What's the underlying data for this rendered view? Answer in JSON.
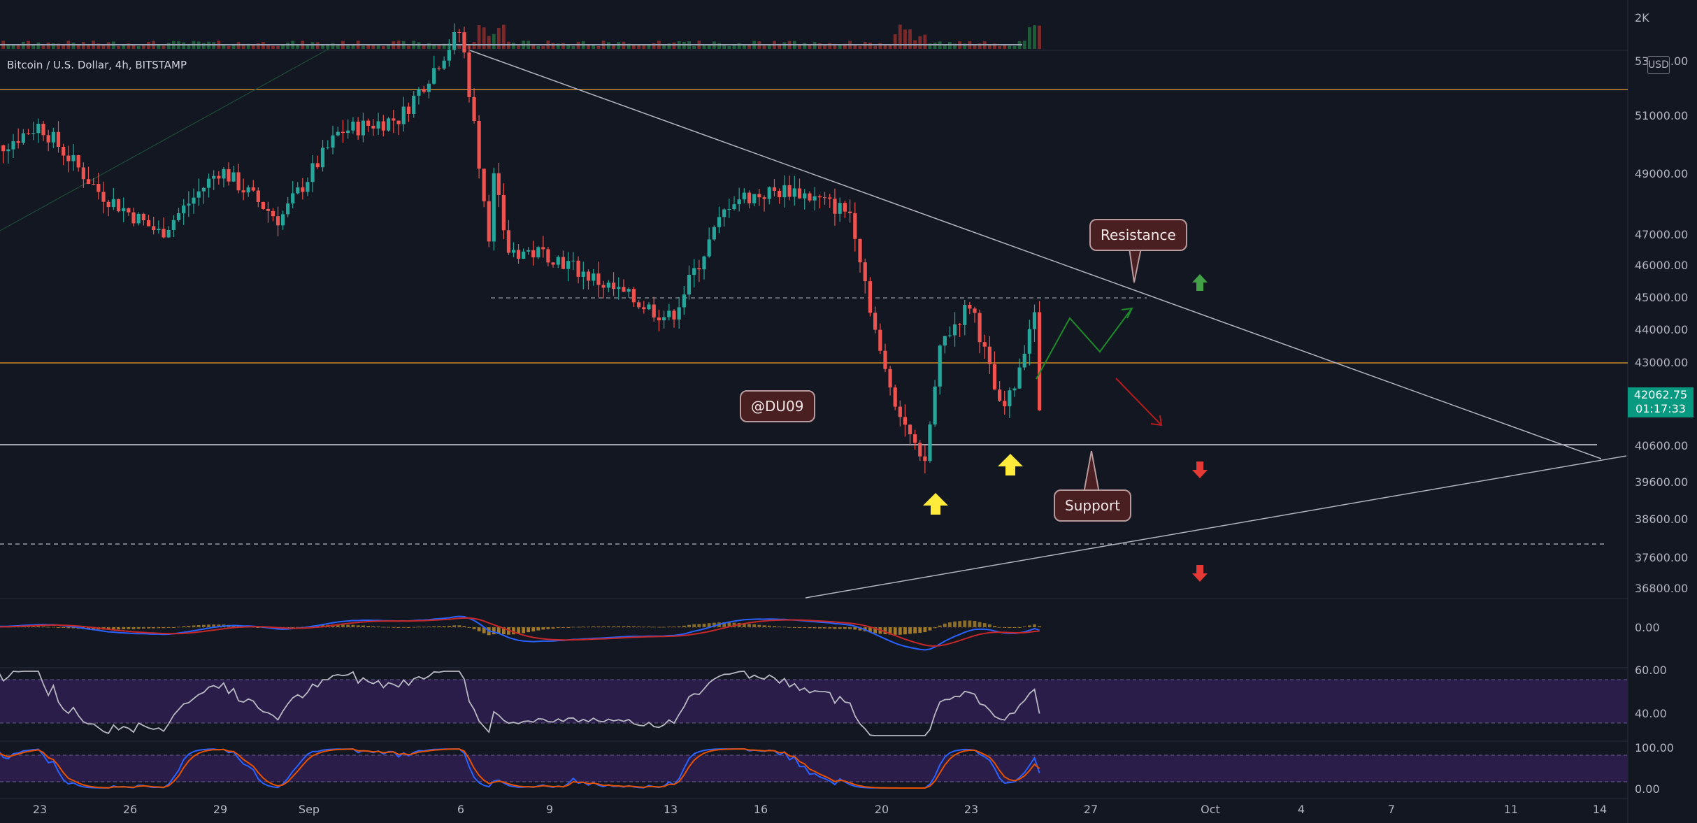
{
  "header": {
    "symbol_title": "Bitcoin / U.S. Dollar, 4h, BITSTAMP"
  },
  "price_scale": {
    "currency_badge": "USD",
    "top_label": "2K",
    "labels": [
      "53000.00",
      "51000.00",
      "49000.00",
      "47000.00",
      "46000.00",
      "45000.00",
      "44000.00",
      "43000.00",
      "40600.00",
      "39600.00",
      "38600.00",
      "37600.00",
      "36800.00"
    ],
    "current_price": "42062.75",
    "countdown": "01:17:33"
  },
  "indicator_scales": {
    "macd": [
      "0.00"
    ],
    "rsi": [
      "60.00",
      "40.00"
    ],
    "stoch": [
      "100.00",
      "0.00"
    ]
  },
  "time_axis": [
    "23",
    "26",
    "29",
    "Sep",
    "6",
    "9",
    "13",
    "16",
    "20",
    "23",
    "27",
    "Oct",
    "4",
    "7",
    "11",
    "14"
  ],
  "annotations": {
    "resistance": "Resistance",
    "support": "Support",
    "watermark": "@DU09"
  },
  "colors": {
    "background": "#131722",
    "bull": "#26a69a",
    "bear": "#ef5350",
    "resistance_line": "#f7a21b",
    "arrow_yellow": "#ffeb3b",
    "arrow_green": "#43a047",
    "arrow_red": "#e53935",
    "rsi_band": "#2a1d4a"
  },
  "chart_data": {
    "type": "candlestick",
    "title": "Bitcoin / U.S. Dollar, 4h, BITSTAMP",
    "timeframe": "4h",
    "ylim": [
      35800,
      54000
    ],
    "levels": {
      "horizontal_resistance": 51500,
      "horizontal_mid": 43000,
      "support": 40600,
      "dashed_upper": 45000,
      "dashed_lower": 38100
    },
    "price_path": [
      {
        "date": "Aug 21",
        "close": 49000
      },
      {
        "date": "Aug 23",
        "close": 50000
      },
      {
        "date": "Aug 25",
        "close": 48000
      },
      {
        "date": "Aug 27",
        "close": 46800
      },
      {
        "date": "Aug 29",
        "close": 48700
      },
      {
        "date": "Aug 31",
        "close": 47200
      },
      {
        "date": "Sep 2",
        "close": 49800
      },
      {
        "date": "Sep 4",
        "close": 50200
      },
      {
        "date": "Sep 6",
        "close": 52800
      },
      {
        "date": "Sep 7",
        "close": 46500
      },
      {
        "date": "Sep 9",
        "close": 46200
      },
      {
        "date": "Sep 11",
        "close": 45200
      },
      {
        "date": "Sep 13",
        "close": 44300
      },
      {
        "date": "Sep 15",
        "close": 47800
      },
      {
        "date": "Sep 17",
        "close": 48100
      },
      {
        "date": "Sep 19",
        "close": 47400
      },
      {
        "date": "Sep 20",
        "close": 43000
      },
      {
        "date": "Sep 21",
        "close": 40700
      },
      {
        "date": "Sep 22",
        "close": 43600
      },
      {
        "date": "Sep 23",
        "close": 44800
      },
      {
        "date": "Sep 24",
        "close": 41500
      },
      {
        "date": "Sep 24",
        "close": 42062.75
      }
    ],
    "current_price": 42062.75
  }
}
